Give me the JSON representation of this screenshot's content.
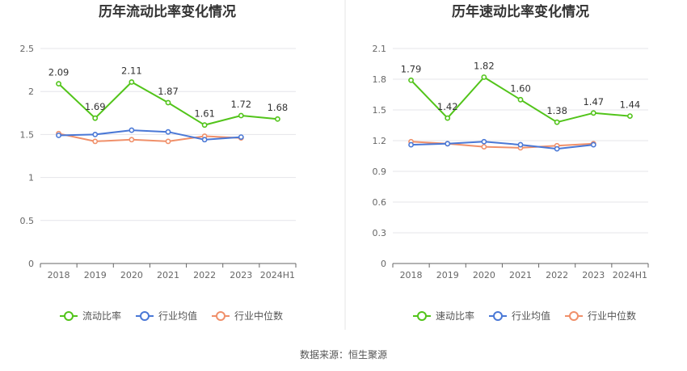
{
  "source_label": "数据来源：恒生聚源",
  "colors": {
    "green": "#52c41a",
    "blue": "#4a78d6",
    "orange": "#f0906a",
    "grid": "#e4e4ea",
    "axis": "#666666",
    "divider": "#e6e6e6"
  },
  "chart_data": [
    {
      "type": "line",
      "title": "历年流动比率变化情况",
      "categories": [
        "2018",
        "2019",
        "2020",
        "2021",
        "2022",
        "2023",
        "2024H1"
      ],
      "ylim": [
        0,
        2.5
      ],
      "yticks": [
        0,
        0.5,
        1,
        1.5,
        2,
        2.5
      ],
      "ytick_labels": [
        "0",
        "0.5",
        "1",
        "1.5",
        "2",
        "2.5"
      ],
      "grid": true,
      "legend_position": "bottom",
      "series": [
        {
          "name": "流动比率",
          "color": "#52c41a",
          "values": [
            2.09,
            1.69,
            2.11,
            1.87,
            1.61,
            1.72,
            1.68
          ],
          "data_labels": [
            "2.09",
            "1.69",
            "2.11",
            "1.87",
            "1.61",
            "1.72",
            "1.68"
          ]
        },
        {
          "name": "行业均值",
          "color": "#4a78d6",
          "values": [
            1.49,
            1.5,
            1.55,
            1.53,
            1.44,
            1.47,
            null
          ]
        },
        {
          "name": "行业中位数",
          "color": "#f0906a",
          "values": [
            1.51,
            1.42,
            1.44,
            1.42,
            1.48,
            1.46,
            null
          ]
        }
      ]
    },
    {
      "type": "line",
      "title": "历年速动比率变化情况",
      "categories": [
        "2018",
        "2019",
        "2020",
        "2021",
        "2022",
        "2023",
        "2024H1"
      ],
      "ylim": [
        0,
        2.1
      ],
      "yticks": [
        0,
        0.3,
        0.6,
        0.9,
        1.2,
        1.5,
        1.8,
        2.1
      ],
      "ytick_labels": [
        "0",
        "0.3",
        "0.6",
        "0.9",
        "1.2",
        "1.5",
        "1.8",
        "2.1"
      ],
      "grid": true,
      "legend_position": "bottom",
      "series": [
        {
          "name": "速动比率",
          "color": "#52c41a",
          "values": [
            1.79,
            1.42,
            1.82,
            1.6,
            1.38,
            1.47,
            1.44
          ],
          "data_labels": [
            "1.79",
            "1.42",
            "1.82",
            "1.60",
            "1.38",
            "1.47",
            "1.44"
          ]
        },
        {
          "name": "行业均值",
          "color": "#4a78d6",
          "values": [
            1.16,
            1.17,
            1.19,
            1.16,
            1.12,
            1.16,
            null
          ]
        },
        {
          "name": "行业中位数",
          "color": "#f0906a",
          "values": [
            1.19,
            1.17,
            1.14,
            1.13,
            1.15,
            1.17,
            null
          ]
        }
      ]
    }
  ]
}
